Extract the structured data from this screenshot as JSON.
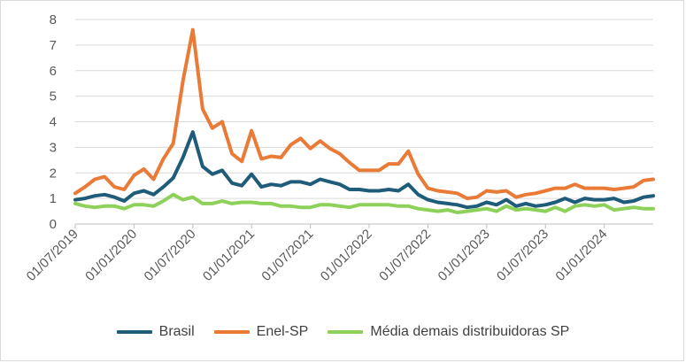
{
  "chart_data": {
    "type": "line",
    "title": "",
    "xlabel": "",
    "ylabel": "",
    "ylim": [
      0,
      8
    ],
    "yticks": [
      "0",
      "1",
      "2",
      "3",
      "4",
      "5",
      "6",
      "7",
      "8"
    ],
    "xtick_labels": [
      "01/07/2019",
      "01/01/2020",
      "01/07/2020",
      "01/01/2021",
      "01/07/2021",
      "01/01/2022",
      "01/07/2022",
      "01/01/2023",
      "01/07/2023",
      "01/01/2024"
    ],
    "x": [
      "2019-07",
      "2019-08",
      "2019-09",
      "2019-10",
      "2019-11",
      "2019-12",
      "2020-01",
      "2020-02",
      "2020-03",
      "2020-04",
      "2020-05",
      "2020-06",
      "2020-07",
      "2020-08",
      "2020-09",
      "2020-10",
      "2020-11",
      "2020-12",
      "2021-01",
      "2021-02",
      "2021-03",
      "2021-04",
      "2021-05",
      "2021-06",
      "2021-07",
      "2021-08",
      "2021-09",
      "2021-10",
      "2021-11",
      "2021-12",
      "2022-01",
      "2022-02",
      "2022-03",
      "2022-04",
      "2022-05",
      "2022-06",
      "2022-07",
      "2022-08",
      "2022-09",
      "2022-10",
      "2022-11",
      "2022-12",
      "2023-01",
      "2023-02",
      "2023-03",
      "2023-04",
      "2023-05",
      "2023-06",
      "2023-07",
      "2023-08",
      "2023-09",
      "2023-10",
      "2023-11",
      "2023-12",
      "2024-01",
      "2024-02",
      "2024-03",
      "2024-04",
      "2024-05",
      "2024-06"
    ],
    "grid": true,
    "legend_position": "bottom",
    "series": [
      {
        "name": "Brasil",
        "color": "#1f5c7a",
        "values": [
          0.95,
          1.0,
          1.1,
          1.15,
          1.05,
          0.9,
          1.2,
          1.3,
          1.15,
          1.45,
          1.8,
          2.6,
          3.6,
          2.25,
          1.95,
          2.1,
          1.6,
          1.5,
          1.95,
          1.45,
          1.55,
          1.5,
          1.65,
          1.65,
          1.55,
          1.75,
          1.65,
          1.55,
          1.35,
          1.35,
          1.3,
          1.3,
          1.35,
          1.3,
          1.55,
          1.15,
          0.95,
          0.85,
          0.8,
          0.75,
          0.65,
          0.7,
          0.85,
          0.75,
          0.95,
          0.7,
          0.8,
          0.7,
          0.75,
          0.85,
          1.0,
          0.85,
          1.0,
          0.95,
          0.95,
          1.0,
          0.85,
          0.9,
          1.05,
          1.1
        ]
      },
      {
        "name": "Enel-SP",
        "color": "#e97b36",
        "values": [
          1.2,
          1.45,
          1.75,
          1.85,
          1.45,
          1.35,
          1.9,
          2.15,
          1.75,
          2.55,
          3.15,
          5.6,
          7.6,
          4.5,
          3.75,
          4.0,
          2.75,
          2.45,
          3.65,
          2.55,
          2.65,
          2.6,
          3.1,
          3.35,
          2.95,
          3.25,
          2.95,
          2.75,
          2.4,
          2.1,
          2.1,
          2.1,
          2.35,
          2.35,
          2.85,
          1.95,
          1.4,
          1.3,
          1.25,
          1.2,
          1.0,
          1.05,
          1.3,
          1.25,
          1.3,
          1.05,
          1.15,
          1.2,
          1.3,
          1.4,
          1.4,
          1.55,
          1.4,
          1.4,
          1.4,
          1.35,
          1.4,
          1.45,
          1.7,
          1.75
        ]
      },
      {
        "name": "Média demais distribuidoras SP",
        "color": "#8ed15a",
        "values": [
          0.8,
          0.7,
          0.65,
          0.7,
          0.7,
          0.6,
          0.75,
          0.75,
          0.7,
          0.9,
          1.15,
          0.95,
          1.05,
          0.8,
          0.8,
          0.9,
          0.8,
          0.85,
          0.85,
          0.8,
          0.8,
          0.7,
          0.7,
          0.65,
          0.65,
          0.75,
          0.75,
          0.7,
          0.65,
          0.75,
          0.75,
          0.75,
          0.75,
          0.7,
          0.7,
          0.6,
          0.55,
          0.5,
          0.55,
          0.45,
          0.5,
          0.55,
          0.6,
          0.5,
          0.7,
          0.55,
          0.6,
          0.55,
          0.5,
          0.65,
          0.5,
          0.7,
          0.75,
          0.7,
          0.75,
          0.55,
          0.6,
          0.65,
          0.6,
          0.6
        ]
      }
    ]
  }
}
